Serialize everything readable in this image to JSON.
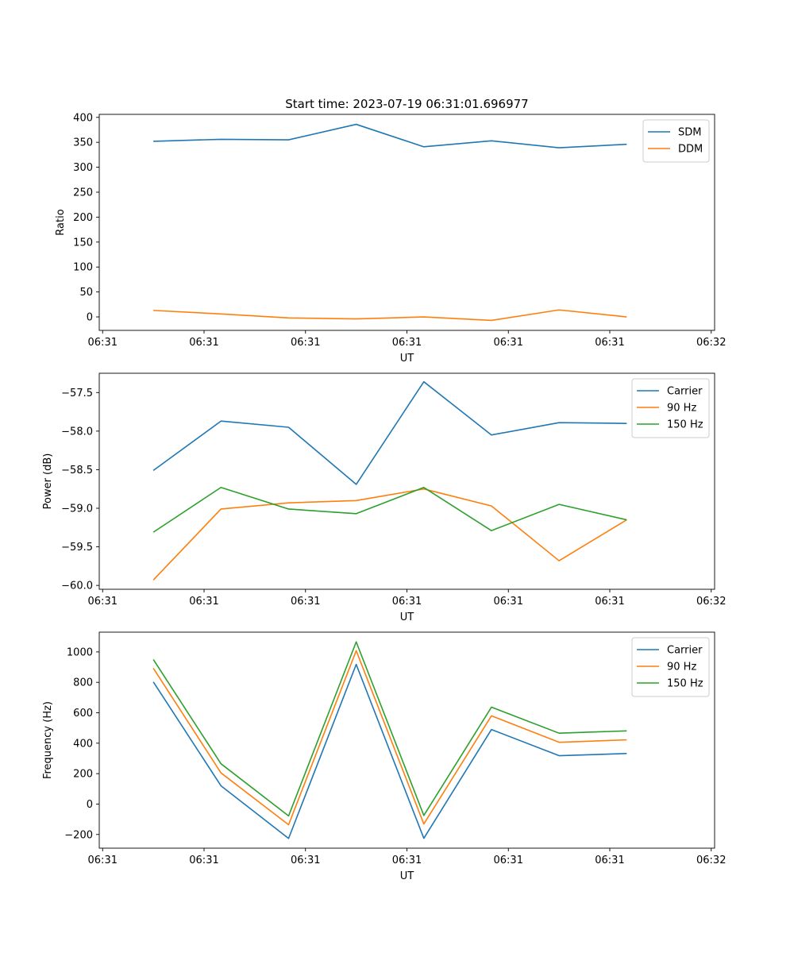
{
  "figure_title": "Start time: 2023-07-19 06:31:01.696977",
  "chart_data": [
    {
      "type": "line",
      "xlabel": "UT",
      "ylabel": "Ratio",
      "x": [
        1,
        2,
        3,
        4,
        5,
        6,
        7,
        8
      ],
      "x_tick_values": [
        0.25,
        1.75,
        3.25,
        4.75,
        6.25,
        7.75,
        9.25
      ],
      "x_tick_labels": [
        "06:31",
        "06:31",
        "06:31",
        "06:31",
        "06:31",
        "06:31",
        "06:32"
      ],
      "xlim": [
        0.2,
        9.3
      ],
      "ylim": [
        -27,
        406
      ],
      "y_ticks": [
        0,
        50,
        100,
        150,
        200,
        250,
        300,
        350,
        400
      ],
      "y_tick_labels": [
        "0",
        "50",
        "100",
        "150",
        "200",
        "250",
        "300",
        "350",
        "400"
      ],
      "legend": "top-right",
      "series": [
        {
          "name": "SDM",
          "color": "#1f77b4",
          "values": [
            352,
            356,
            355,
            386,
            341,
            353,
            339,
            346
          ]
        },
        {
          "name": "DDM",
          "color": "#ff7f0e",
          "values": [
            13,
            6,
            -2,
            -4,
            0,
            -7,
            14,
            0
          ]
        }
      ]
    },
    {
      "type": "line",
      "xlabel": "UT",
      "ylabel": "Power (dB)",
      "x": [
        1,
        2,
        3,
        4,
        5,
        6,
        7,
        8
      ],
      "x_tick_values": [
        0.25,
        1.75,
        3.25,
        4.75,
        6.25,
        7.75,
        9.25
      ],
      "x_tick_labels": [
        "06:31",
        "06:31",
        "06:31",
        "06:31",
        "06:31",
        "06:31",
        "06:32"
      ],
      "xlim": [
        0.2,
        9.3
      ],
      "ylim": [
        -60.05,
        -57.25
      ],
      "y_ticks": [
        -60.0,
        -59.5,
        -59.0,
        -58.5,
        -58.0,
        -57.5
      ],
      "y_tick_labels": [
        "−60.0",
        "−59.5",
        "−59.0",
        "−58.5",
        "−58.0",
        "−57.5"
      ],
      "legend": "top-right",
      "series": [
        {
          "name": "Carrier",
          "color": "#1f77b4",
          "values": [
            -58.51,
            -57.87,
            -57.95,
            -58.69,
            -57.36,
            -58.05,
            -57.89,
            -57.9
          ]
        },
        {
          "name": "90 Hz",
          "color": "#ff7f0e",
          "values": [
            -59.93,
            -59.01,
            -58.93,
            -58.9,
            -58.75,
            -58.97,
            -59.68,
            -59.15
          ]
        },
        {
          "name": "150 Hz",
          "color": "#2ca02c",
          "values": [
            -59.31,
            -58.73,
            -59.01,
            -59.07,
            -58.73,
            -59.29,
            -58.95,
            -59.15
          ]
        }
      ]
    },
    {
      "type": "line",
      "xlabel": "UT",
      "ylabel": "Frequency (Hz)",
      "x": [
        1,
        2,
        3,
        4,
        5,
        6,
        7,
        8
      ],
      "x_tick_values": [
        0.25,
        1.75,
        3.25,
        4.75,
        6.25,
        7.75,
        9.25
      ],
      "x_tick_labels": [
        "06:31",
        "06:31",
        "06:31",
        "06:31",
        "06:31",
        "06:31",
        "06:32"
      ],
      "xlim": [
        0.2,
        9.3
      ],
      "ylim": [
        -290,
        1130
      ],
      "y_ticks": [
        -200,
        0,
        200,
        400,
        600,
        800,
        1000
      ],
      "y_tick_labels": [
        "−200",
        "0",
        "200",
        "400",
        "600",
        "800",
        "1000"
      ],
      "legend": "top-right",
      "series": [
        {
          "name": "Carrier",
          "color": "#1f77b4",
          "values": [
            803,
            120,
            -226,
            918,
            -225,
            490,
            318,
            332
          ]
        },
        {
          "name": "90 Hz",
          "color": "#ff7f0e",
          "values": [
            893,
            205,
            -136,
            1008,
            -131,
            580,
            406,
            422
          ]
        },
        {
          "name": "150 Hz",
          "color": "#2ca02c",
          "values": [
            950,
            265,
            -78,
            1066,
            -75,
            637,
            466,
            481
          ]
        }
      ]
    }
  ]
}
